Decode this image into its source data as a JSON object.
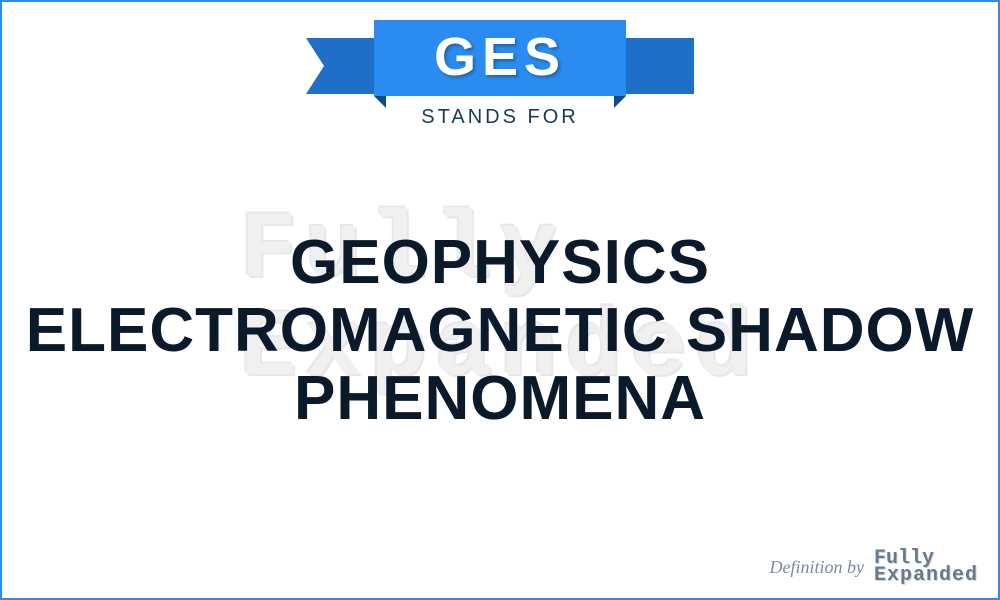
{
  "acronym": "GES",
  "stands_for_label": "STANDS FOR",
  "definition": "GEOPHYSICS\nELECTROMAGNETIC SHADOW\nPHENOMENA",
  "watermark": {
    "line1": "Fully",
    "line2": "Expanded"
  },
  "attribution": {
    "label": "Definition by",
    "logo_line1": "Fully",
    "logo_line2": "Expanded"
  },
  "colors": {
    "ribbon": "#2a8cf0",
    "ribbon_back": "#1e6fc7",
    "ribbon_fold": "#0d4a8a",
    "border": "#2a8cf0",
    "text_dark": "#0a1a2a",
    "subtext": "#1a3a5a",
    "watermark": "#f0f0f0",
    "attribution_text": "#7a8aa0",
    "logo_text": "#6a7a8a"
  }
}
